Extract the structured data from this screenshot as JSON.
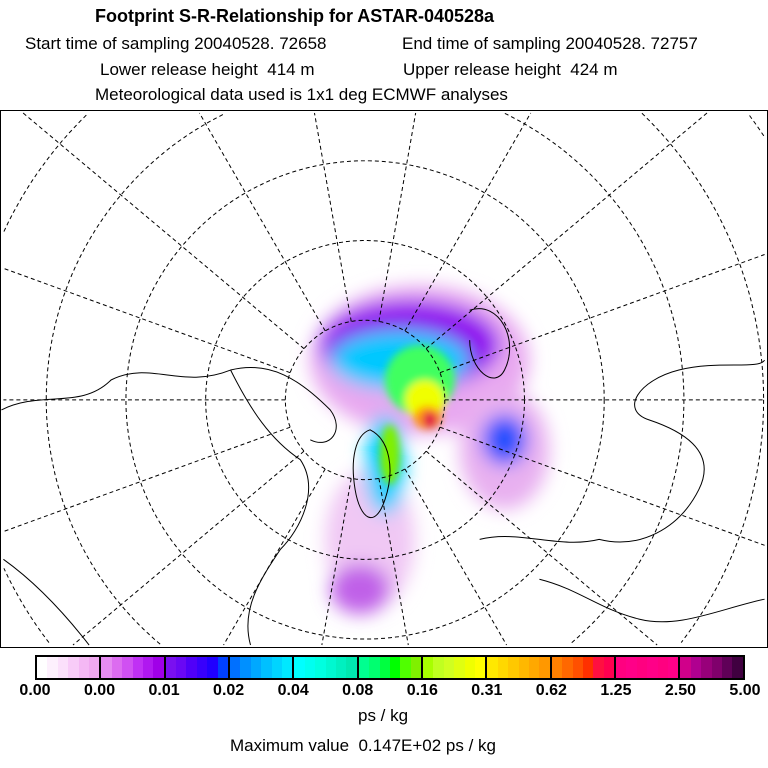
{
  "header": {
    "title": "Footprint S-R-Relationship for ASTAR-040528a",
    "start_time": "Start time of sampling 20040528. 72658",
    "end_time": "End time of sampling 20040528. 72757",
    "lower_height": "Lower release height  414 m",
    "upper_height": "Upper release height  424 m",
    "met_data": "Meteorological data used is 1x1 deg ECMWF analyses"
  },
  "colorbar": {
    "ticks": [
      "0.00",
      "0.00",
      "0.01",
      "0.02",
      "0.04",
      "0.08",
      "0.16",
      "0.31",
      "0.62",
      "1.25",
      "2.50",
      "5.00"
    ],
    "colors": [
      "#ffffff",
      "#fdf0fd",
      "#fbe0fb",
      "#f8ccf8",
      "#f4b8f4",
      "#f0a8f0",
      "#e68cf2",
      "#dc6cf0",
      "#d050f2",
      "#c030f4",
      "#b018f0",
      "#a000e8",
      "#7a10f0",
      "#6a08f4",
      "#5000f8",
      "#3800fc",
      "#2000ff",
      "#0040ff",
      "#0070ff",
      "#0090ff",
      "#00a8ff",
      "#00c0ff",
      "#00d4ff",
      "#00e8ff",
      "#00ffff",
      "#00fff0",
      "#00ffe0",
      "#00f8d0",
      "#00f0c0",
      "#00e8b0",
      "#00ff90",
      "#00ff70",
      "#00ff40",
      "#00ff00",
      "#50ff00",
      "#80f000",
      "#a8ff00",
      "#c0ff20",
      "#d0ff20",
      "#e0ff10",
      "#f0ff00",
      "#ffff00",
      "#ffe800",
      "#ffd800",
      "#ffc800",
      "#ffb800",
      "#ffa800",
      "#ff9800",
      "#ff8000",
      "#ff6800",
      "#ff5000",
      "#ff3000",
      "#ff1040",
      "#ff0050",
      "#ff0080",
      "#ff0088",
      "#ff0080",
      "#ff0088",
      "#ff0080",
      "#ff0088",
      "#d0008a",
      "#b00090",
      "#98007a",
      "#80006c",
      "#600058",
      "#400040"
    ],
    "unit": "ps / kg",
    "max_value": "Maximum value  0.147E+02 ps / kg"
  }
}
